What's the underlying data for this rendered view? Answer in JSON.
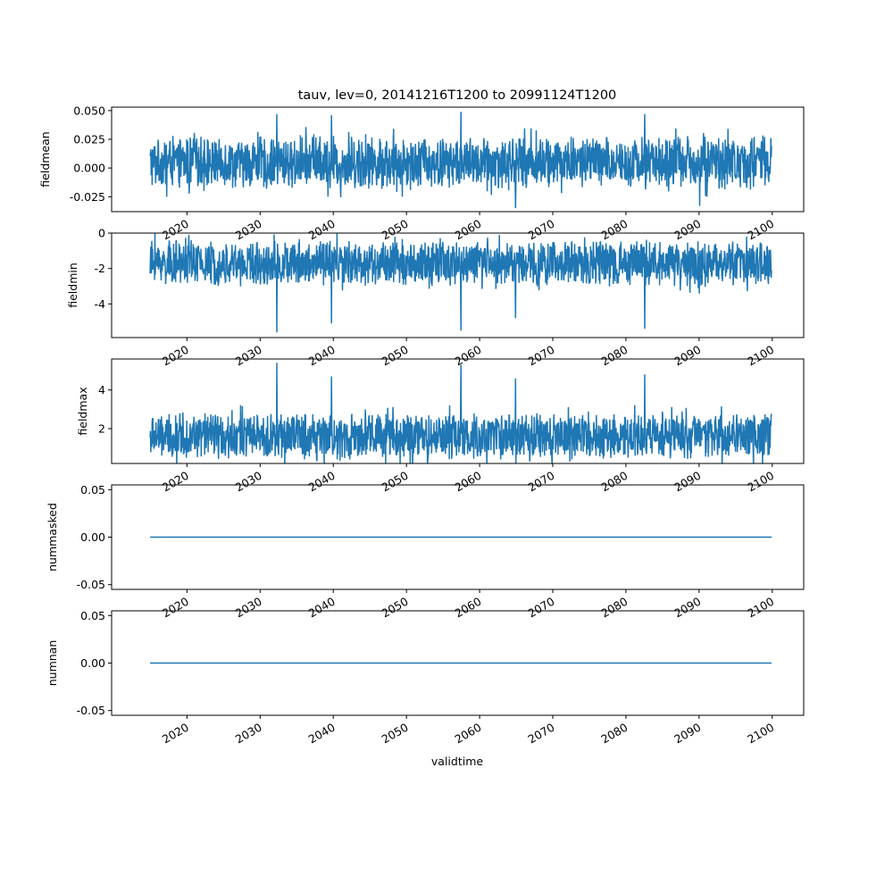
{
  "figure": {
    "title": "tauv, lev=0, 20141216T1200 to 20991124T1200",
    "xlabel": "validtime"
  },
  "chart_data": [
    {
      "type": "line",
      "ylabel": "fieldmean",
      "ylim": [
        -0.038,
        0.053
      ],
      "yticks": [
        "0.050",
        "0.025",
        "0.000",
        "-0.025"
      ],
      "ytick_values": [
        0.05,
        0.025,
        0.0,
        -0.025
      ],
      "xlim": [
        2009.7,
        2104.3
      ],
      "xticks": [
        "2020",
        "2030",
        "2040",
        "2050",
        "2060",
        "2070",
        "2080",
        "2090",
        "2100"
      ],
      "xtick_values": [
        2020,
        2030,
        2040,
        2050,
        2060,
        2070,
        2080,
        2090,
        2100
      ],
      "x_range": [
        2014.96,
        2099.9
      ],
      "typical_range": [
        -0.018,
        0.028
      ],
      "peak_values": [
        0.047,
        0.049,
        0.047,
        0.046,
        -0.035,
        -0.033
      ],
      "color": "#1f77b4",
      "grid": false
    },
    {
      "type": "line",
      "ylabel": "fieldmin",
      "ylim": [
        -5.9,
        0.0
      ],
      "yticks": [
        "0",
        "-2",
        "-4"
      ],
      "ytick_values": [
        0,
        -2,
        -4
      ],
      "xlim": [
        2009.7,
        2104.3
      ],
      "xticks": [
        "2020",
        "2030",
        "2040",
        "2050",
        "2060",
        "2070",
        "2080",
        "2090",
        "2100"
      ],
      "xtick_values": [
        2020,
        2030,
        2040,
        2050,
        2060,
        2070,
        2080,
        2090,
        2100
      ],
      "x_range": [
        2014.96,
        2099.9
      ],
      "typical_range": [
        -3.0,
        -0.4
      ],
      "peak_values": [
        -5.6,
        -5.5,
        -5.4,
        -5.1,
        -4.8
      ],
      "color": "#1f77b4",
      "grid": false
    },
    {
      "type": "line",
      "ylabel": "fieldmax",
      "ylim": [
        0.2,
        5.6
      ],
      "yticks": [
        "4",
        "2"
      ],
      "ytick_values": [
        4,
        2
      ],
      "xlim": [
        2009.7,
        2104.3
      ],
      "xticks": [
        "2020",
        "2030",
        "2040",
        "2050",
        "2060",
        "2070",
        "2080",
        "2090",
        "2100"
      ],
      "xtick_values": [
        2020,
        2030,
        2040,
        2050,
        2060,
        2070,
        2080,
        2090,
        2100
      ],
      "x_range": [
        2014.96,
        2099.9
      ],
      "typical_range": [
        0.4,
        2.8
      ],
      "peak_values": [
        5.4,
        5.3,
        4.8,
        4.7,
        4.6
      ],
      "color": "#1f77b4",
      "grid": false
    },
    {
      "type": "line",
      "ylabel": "nummasked",
      "ylim": [
        -0.055,
        0.055
      ],
      "yticks": [
        "0.05",
        "0.00",
        "-0.05"
      ],
      "ytick_values": [
        0.05,
        0.0,
        -0.05
      ],
      "xlim": [
        2009.7,
        2104.3
      ],
      "xticks": [
        "2020",
        "2030",
        "2040",
        "2050",
        "2060",
        "2070",
        "2080",
        "2090",
        "2100"
      ],
      "xtick_values": [
        2020,
        2030,
        2040,
        2050,
        2060,
        2070,
        2080,
        2090,
        2100
      ],
      "x_range": [
        2014.96,
        2099.9
      ],
      "constant_value": 0,
      "color": "#1f77b4",
      "grid": false
    },
    {
      "type": "line",
      "ylabel": "numnan",
      "ylim": [
        -0.055,
        0.055
      ],
      "yticks": [
        "0.05",
        "0.00",
        "-0.05"
      ],
      "ytick_values": [
        0.05,
        0.0,
        -0.05
      ],
      "xlim": [
        2009.7,
        2104.3
      ],
      "xticks": [
        "2020",
        "2030",
        "2040",
        "2050",
        "2060",
        "2070",
        "2080",
        "2090",
        "2100"
      ],
      "xtick_values": [
        2020,
        2030,
        2040,
        2050,
        2060,
        2070,
        2080,
        2090,
        2100
      ],
      "x_range": [
        2014.96,
        2099.9
      ],
      "constant_value": 0,
      "color": "#1f77b4",
      "grid": false
    }
  ]
}
